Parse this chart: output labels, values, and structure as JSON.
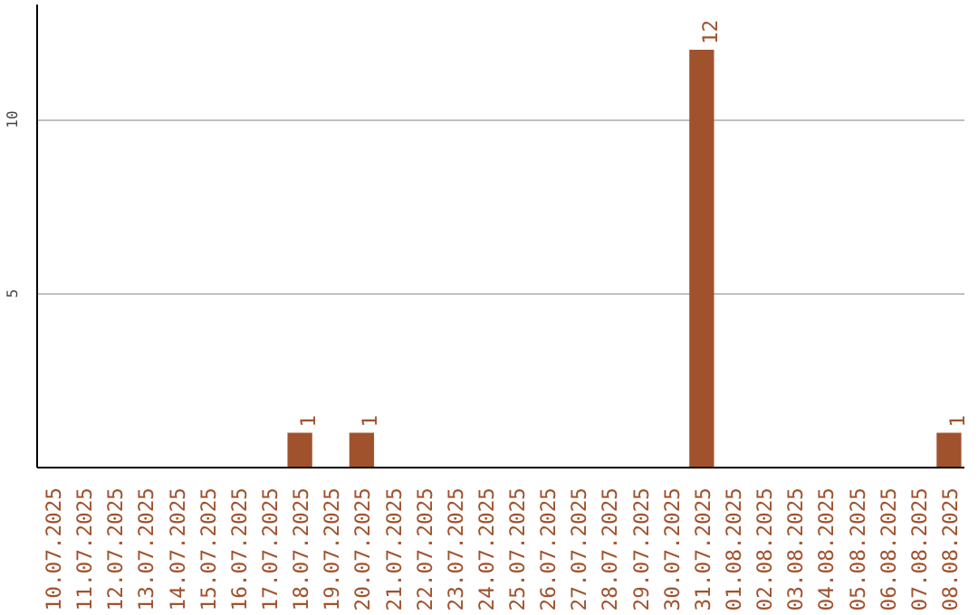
{
  "chart_data": {
    "type": "bar",
    "categories": [
      "10.07.2025",
      "11.07.2025",
      "12.07.2025",
      "13.07.2025",
      "14.07.2025",
      "15.07.2025",
      "16.07.2025",
      "17.07.2025",
      "18.07.2025",
      "19.07.2025",
      "20.07.2025",
      "21.07.2025",
      "22.07.2025",
      "23.07.2025",
      "24.07.2025",
      "25.07.2025",
      "26.07.2025",
      "27.07.2025",
      "28.07.2025",
      "29.07.2025",
      "30.07.2025",
      "31.07.2025",
      "01.08.2025",
      "02.08.2025",
      "03.08.2025",
      "04.08.2025",
      "05.08.2025",
      "06.08.2025",
      "07.08.2025",
      "08.08.2025"
    ],
    "values": [
      0,
      0,
      0,
      0,
      0,
      0,
      0,
      0,
      1,
      0,
      1,
      0,
      0,
      0,
      0,
      0,
      0,
      0,
      0,
      0,
      0,
      12,
      0,
      0,
      0,
      0,
      0,
      0,
      0,
      1
    ],
    "value_labels": [
      null,
      null,
      null,
      null,
      null,
      null,
      null,
      null,
      "1",
      null,
      "1",
      null,
      null,
      null,
      null,
      null,
      null,
      null,
      null,
      null,
      null,
      "12",
      null,
      null,
      null,
      null,
      null,
      null,
      null,
      "1"
    ],
    "color": "#a0522d",
    "ylim": [
      0,
      13.3
    ],
    "yticks": [
      5,
      10
    ],
    "grid": "y"
  }
}
